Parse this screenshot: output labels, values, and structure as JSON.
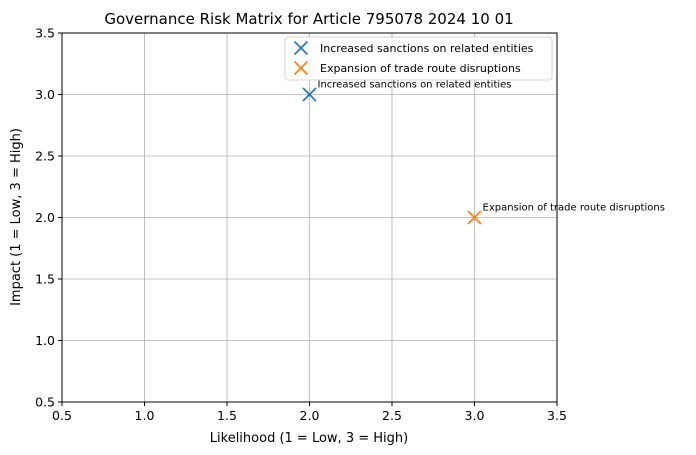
{
  "chart_data": {
    "type": "scatter",
    "title": "Governance Risk Matrix for Article 795078 2024 10 01",
    "xlabel": "Likelihood (1 = Low, 3 = High)",
    "ylabel": "Impact (1 = Low, 3 = High)",
    "xlim": [
      0.5,
      3.5
    ],
    "ylim": [
      0.5,
      3.5
    ],
    "xticks": [
      "0.5",
      "1.0",
      "1.5",
      "2.0",
      "2.5",
      "3.0",
      "3.5"
    ],
    "yticks": [
      "0.5",
      "1.0",
      "1.5",
      "2.0",
      "2.5",
      "3.0",
      "3.5"
    ],
    "grid": true,
    "legend_position": "top-right",
    "marker": "x",
    "series": [
      {
        "name": "Increased sanctions on related entities",
        "color": "#1f77b4",
        "points": [
          {
            "x": 2,
            "y": 3,
            "label": "Increased sanctions on related entities"
          }
        ]
      },
      {
        "name": "Expansion of trade route disruptions",
        "color": "#ff7f0e",
        "points": [
          {
            "x": 3,
            "y": 2,
            "label": "Expansion of trade route disruptions"
          }
        ]
      }
    ]
  }
}
